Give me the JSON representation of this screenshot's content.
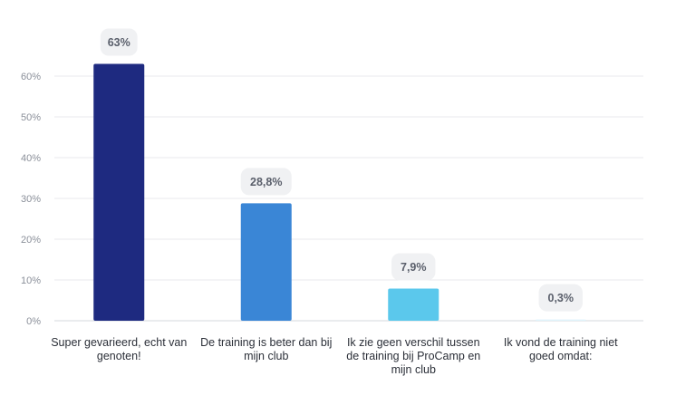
{
  "chart_data": {
    "type": "bar",
    "title": "",
    "xlabel": "",
    "ylabel": "",
    "categories": [
      "Super gevarieerd, echt van genoten!",
      "De training is beter dan bij mijn club",
      "Ik zie geen verschil tussen de training bij ProCamp en mijn club",
      "Ik vond de training niet goed omdat:"
    ],
    "category_lines": [
      [
        "Super gevarieerd, echt van",
        "genoten!"
      ],
      [
        "De training is beter dan bij",
        "mijn club"
      ],
      [
        "Ik zie geen verschil tussen",
        "de training bij ProCamp en",
        "mijn club"
      ],
      [
        "Ik vond de training niet",
        "goed omdat:"
      ]
    ],
    "values": [
      63,
      28.8,
      7.9,
      0.3
    ],
    "data_labels": [
      "63%",
      "28,8%",
      "7,9%",
      "0,3%"
    ],
    "y_ticks": [
      0,
      10,
      20,
      30,
      40,
      50,
      60
    ],
    "y_tick_labels": [
      "0%",
      "10%",
      "20%",
      "30%",
      "40%",
      "50%",
      "60%"
    ],
    "ylim": [
      0,
      60
    ],
    "grid": true,
    "legend": "none",
    "bar_colors": [
      "#1e2a80",
      "#3a86d6",
      "#5bc8ec",
      "#dff4fb"
    ],
    "label_bg_color": "#f0f1f3"
  }
}
